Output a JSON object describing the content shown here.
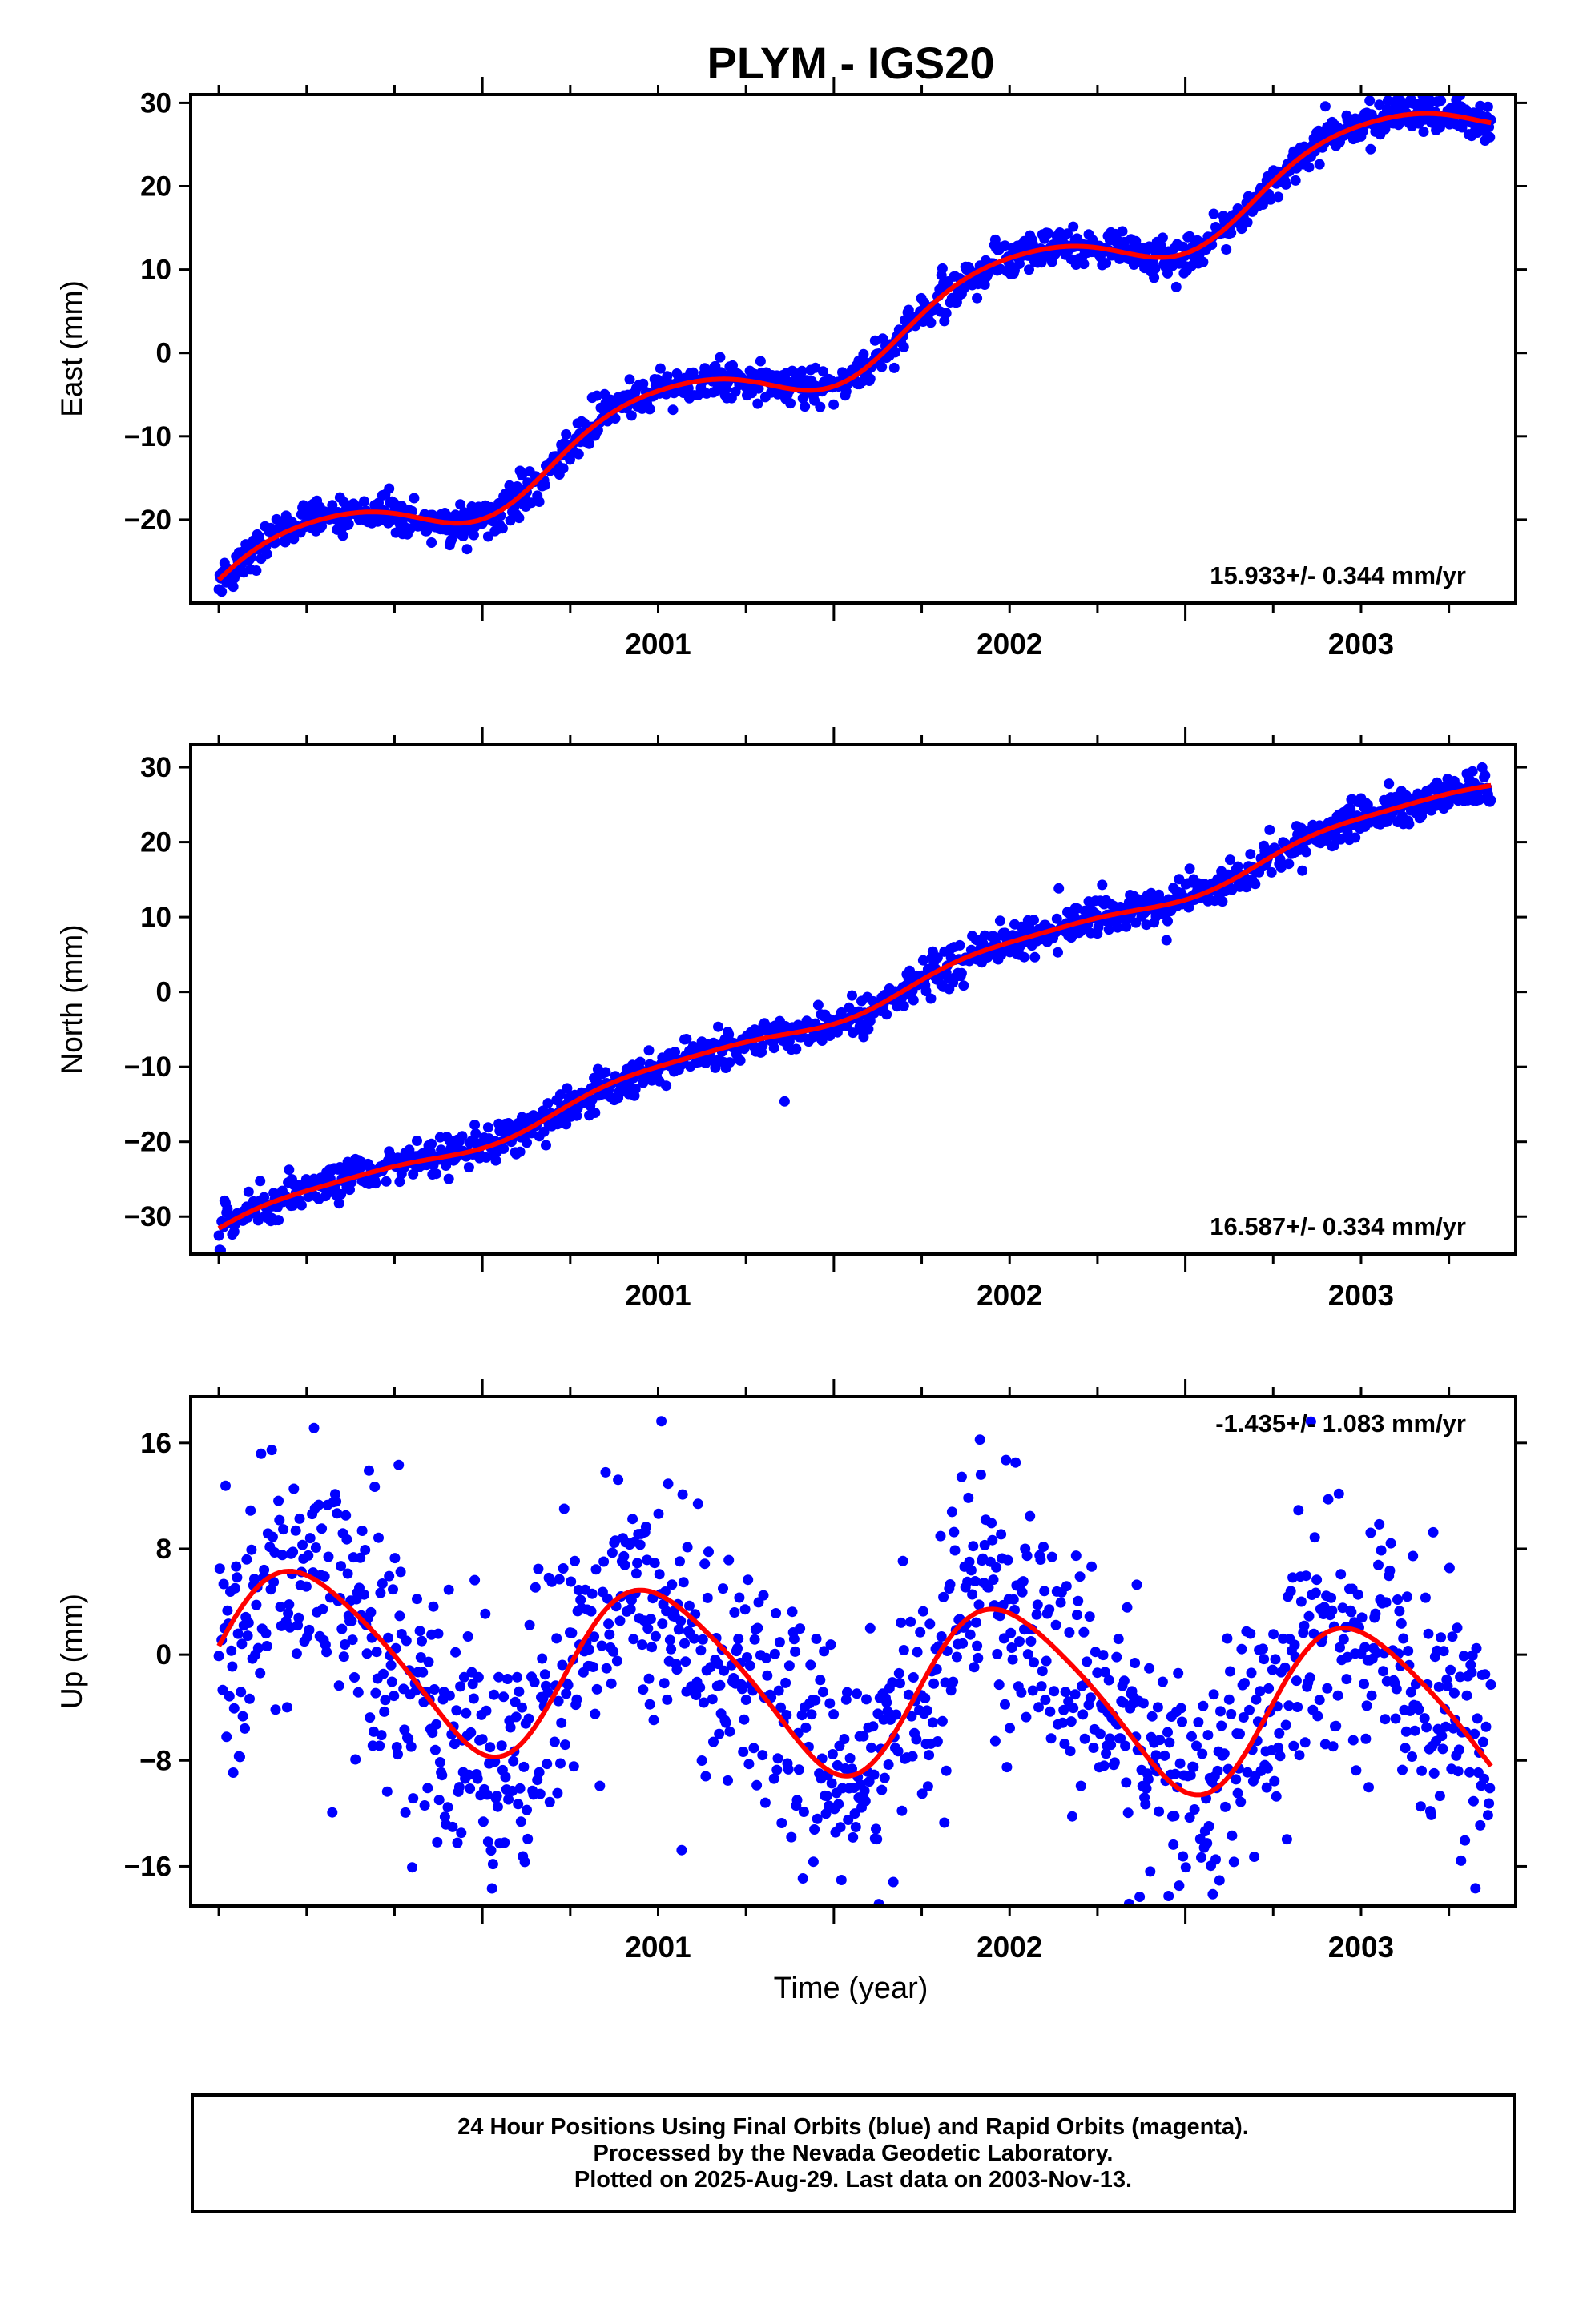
{
  "title": "PLYM - IGS20",
  "xlabel": "Time (year)",
  "footer": {
    "line1": "24 Hour Positions Using Final Orbits (blue) and Rapid Orbits (magenta).",
    "line2": "Processed by the Nevada Geodetic Laboratory.",
    "line3": "Plotted on 2025-Aug-29. Last data on 2003-Nov-13."
  },
  "colors": {
    "points": "#0000ff",
    "model": "#ff0000",
    "frame": "#000000"
  },
  "chart_data": [
    {
      "type": "scatter",
      "panel": "east",
      "ylabel": "East (mm)",
      "rate_label": "15.933+/- 0.344 mm/yr",
      "xlim": [
        2000.17,
        2003.94
      ],
      "ylim": [
        -30,
        31
      ],
      "yticks": [
        -20,
        -10,
        0,
        10,
        20,
        30
      ],
      "xticks": [
        2001,
        2002,
        2003
      ],
      "x_start": 2000.25,
      "x_end": 2003.87,
      "model": {
        "rate": 15.933,
        "offset": -27.7,
        "annual_amp": 3.7,
        "annual_phase": 0.0,
        "semiannual_amp": 0.5,
        "semiannual_phase": 1.3,
        "scatter": 1.1
      },
      "series": [
        {
          "name": "Final Orbits (blue)",
          "values": "daily positions, 2000.25–2003.87"
        },
        {
          "name": "model",
          "values": "rate + seasonal fit"
        }
      ]
    },
    {
      "type": "scatter",
      "panel": "north",
      "ylabel": "North (mm)",
      "rate_label": "16.587+/- 0.334 mm/yr",
      "xlim": [
        2000.17,
        2003.94
      ],
      "ylim": [
        -35,
        33
      ],
      "yticks": [
        -30,
        -20,
        -10,
        0,
        10,
        20,
        30
      ],
      "xticks": [
        2001,
        2002,
        2003
      ],
      "x_start": 2000.25,
      "x_end": 2003.87,
      "model": {
        "rate": 16.587,
        "offset": -31.8,
        "annual_amp": 1.3,
        "annual_phase": 0.0,
        "semiannual_amp": 0.3,
        "semiannual_phase": 0.8,
        "scatter": 1.2
      },
      "series": [
        {
          "name": "Final Orbits (blue)",
          "values": "daily positions, 2000.25–2003.87"
        },
        {
          "name": "model",
          "values": "rate + seasonal fit"
        }
      ]
    },
    {
      "type": "scatter",
      "panel": "up",
      "ylabel": "Up (mm)",
      "rate_label": "-1.435+/- 1.083 mm/yr",
      "xlim": [
        2000.17,
        2003.94
      ],
      "ylim": [
        -19,
        19.5
      ],
      "yticks": [
        -16,
        -8,
        0,
        8,
        16
      ],
      "xticks": [
        2001,
        2002,
        2003
      ],
      "x_start": 2000.25,
      "x_end": 2003.87,
      "model": {
        "rate": -1.435,
        "offset": 0.3,
        "annual_amp": 6.4,
        "annual_phase": 0.0,
        "semiannual_amp": 0.9,
        "semiannual_phase": 0.4,
        "scatter": 4.6
      },
      "series": [
        {
          "name": "Final Orbits (blue)",
          "values": "daily positions, 2000.25–2003.87"
        },
        {
          "name": "model",
          "values": "rate + seasonal fit"
        }
      ]
    }
  ]
}
